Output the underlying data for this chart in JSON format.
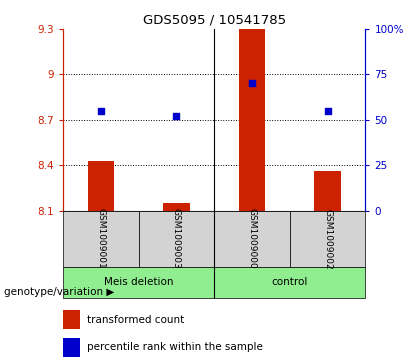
{
  "title": "GDS5095 / 10541785",
  "samples": [
    "GSM1009001",
    "GSM1009003",
    "GSM1009000",
    "GSM1009002"
  ],
  "groups": [
    "Meis deletion",
    "Meis deletion",
    "control",
    "control"
  ],
  "red_values": [
    8.43,
    8.15,
    9.3,
    8.36
  ],
  "blue_values": [
    55,
    52,
    70,
    55
  ],
  "ylim_left": [
    8.1,
    9.3
  ],
  "ylim_right": [
    0,
    100
  ],
  "yticks_left": [
    8.1,
    8.4,
    8.7,
    9.0,
    9.3
  ],
  "yticks_right": [
    0,
    25,
    50,
    75,
    100
  ],
  "ytick_labels_left": [
    "8.1",
    "8.4",
    "8.7",
    "9",
    "9.3"
  ],
  "ytick_labels_right": [
    "0",
    "25",
    "50",
    "75",
    "100%"
  ],
  "hlines": [
    9.0,
    8.7,
    8.4
  ],
  "red_color": "#cc2200",
  "blue_color": "#0000cc",
  "bar_width": 0.35,
  "legend_red": "transformed count",
  "legend_blue": "percentile rank within the sample",
  "group_text": "genotype/variation",
  "green_color": "#90ee90",
  "gray_color": "#d3d3d3"
}
